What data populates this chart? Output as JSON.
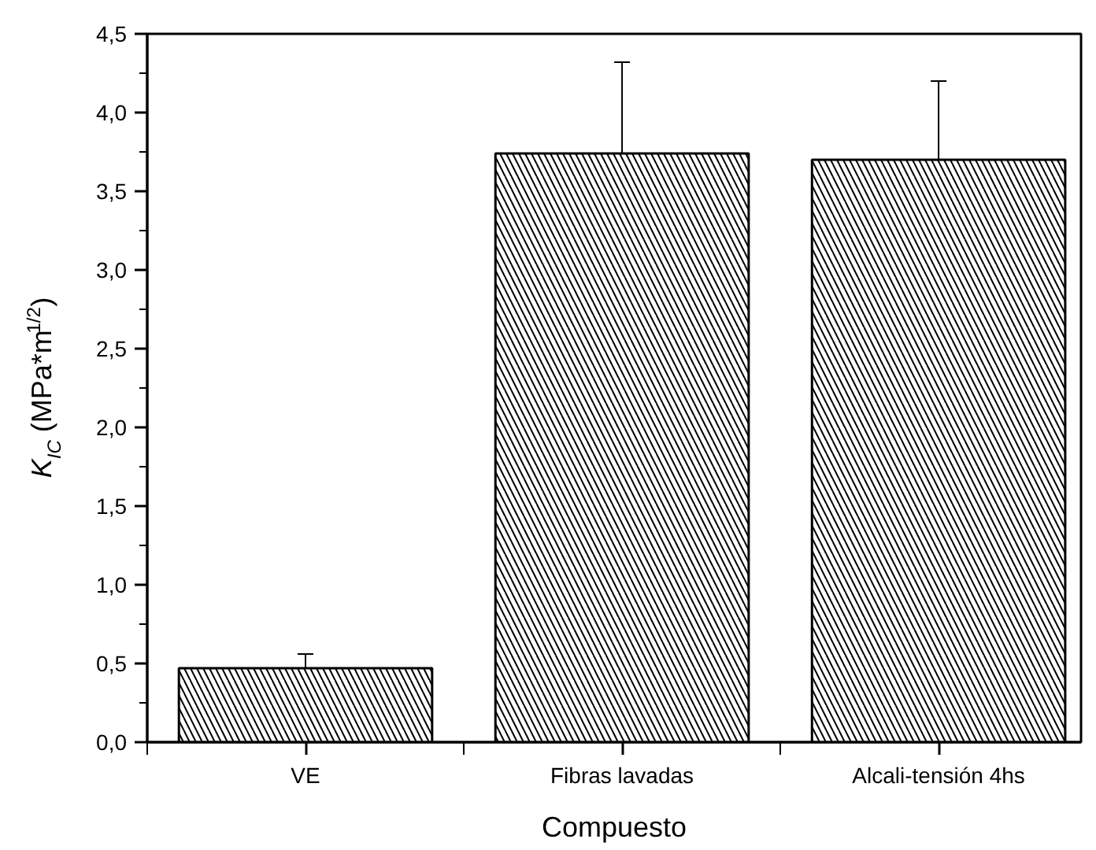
{
  "chart_data": {
    "type": "bar",
    "xlabel": "Compuesto",
    "ylabel": "K$_{IC}$ (MPa*m$^{1/2}$)",
    "categories": [
      "VE",
      "Fibras lavadas",
      "Alcali-tensión 4hs"
    ],
    "values": [
      0.47,
      3.74,
      3.7
    ],
    "errors": [
      0.09,
      0.58,
      0.5
    ],
    "color": "#000000",
    "ylim": [
      0,
      4.5
    ],
    "yticks": [
      {
        "value": 0,
        "label": "0,0"
      },
      {
        "value": 0.5,
        "label": "0,5"
      },
      {
        "value": 1,
        "label": "1,0"
      },
      {
        "value": 1.5,
        "label": "1,5"
      },
      {
        "value": 2,
        "label": "2,0"
      },
      {
        "value": 2.5,
        "label": "2,5"
      },
      {
        "value": 3,
        "label": "3,0"
      },
      {
        "value": 3.5,
        "label": "3,5"
      },
      {
        "value": 4,
        "label": "4,0"
      },
      {
        "value": 4.5,
        "label": "4,5"
      }
    ],
    "grid": false,
    "legend": false
  }
}
